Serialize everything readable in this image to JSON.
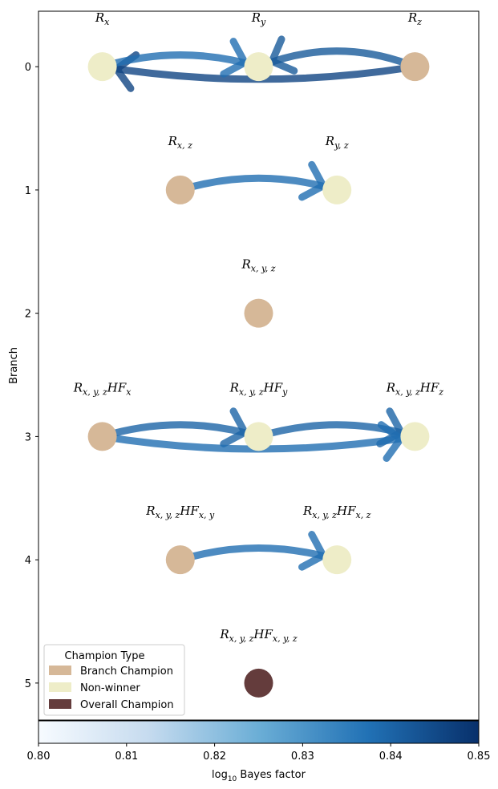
{
  "chart_data": {
    "type": "network",
    "ylabel": "Branch",
    "yticks": [
      0,
      1,
      2,
      3,
      4,
      5
    ],
    "ylim": [
      5.3,
      -0.45
    ],
    "xlim": [
      0,
      1
    ],
    "legend": {
      "title": "Champion Type",
      "placement": "lower-left",
      "entries": [
        {
          "label": "Branch Champion",
          "color": "#d6b898"
        },
        {
          "label": "Non-winner",
          "color": "#eeedc8"
        },
        {
          "label": "Overall Champion",
          "color": "#643c3c"
        }
      ]
    },
    "colorbar": {
      "label": "log",
      "label_sub": "10",
      "label_rest": " Bayes factor",
      "min": 0.8,
      "max": 0.85,
      "ticks": [
        "0.80",
        "0.81",
        "0.82",
        "0.83",
        "0.84",
        "0.85"
      ],
      "colormap": [
        "#f7fbff",
        "#c6dbef",
        "#6baed6",
        "#2171b5",
        "#08306b"
      ]
    },
    "nodes": [
      {
        "id": "Rx",
        "branch": 0,
        "x": 0.145,
        "type": "Non-winner",
        "label": {
          "base": "R",
          "sub": "x",
          "tail": "",
          "tsub": ""
        }
      },
      {
        "id": "Ry",
        "branch": 0,
        "x": 0.5,
        "type": "Non-winner",
        "label": {
          "base": "R",
          "sub": "y",
          "tail": "",
          "tsub": ""
        }
      },
      {
        "id": "Rz",
        "branch": 0,
        "x": 0.855,
        "type": "Branch Champion",
        "label": {
          "base": "R",
          "sub": "z",
          "tail": "",
          "tsub": ""
        }
      },
      {
        "id": "Rxz",
        "branch": 1,
        "x": 0.322,
        "type": "Branch Champion",
        "label": {
          "base": "R",
          "sub": "x, z",
          "tail": "",
          "tsub": ""
        }
      },
      {
        "id": "Ryz",
        "branch": 1,
        "x": 0.678,
        "type": "Non-winner",
        "label": {
          "base": "R",
          "sub": "y, z",
          "tail": "",
          "tsub": ""
        }
      },
      {
        "id": "Rxyz",
        "branch": 2,
        "x": 0.5,
        "type": "Branch Champion",
        "label": {
          "base": "R",
          "sub": "x, y, z",
          "tail": "",
          "tsub": ""
        }
      },
      {
        "id": "HFx",
        "branch": 3,
        "x": 0.145,
        "type": "Branch Champion",
        "label": {
          "base": "R",
          "sub": "x, y, z",
          "tail": "HF",
          "tsub": "x"
        }
      },
      {
        "id": "HFy",
        "branch": 3,
        "x": 0.5,
        "type": "Non-winner",
        "label": {
          "base": "R",
          "sub": "x, y, z",
          "tail": "HF",
          "tsub": "y"
        }
      },
      {
        "id": "HFz",
        "branch": 3,
        "x": 0.855,
        "type": "Non-winner",
        "label": {
          "base": "R",
          "sub": "x, y, z",
          "tail": "HF",
          "tsub": "z"
        }
      },
      {
        "id": "HFxy",
        "branch": 4,
        "x": 0.322,
        "type": "Branch Champion",
        "label": {
          "base": "R",
          "sub": "x, y, z",
          "tail": "HF",
          "tsub": "x, y"
        }
      },
      {
        "id": "HFxz",
        "branch": 4,
        "x": 0.678,
        "type": "Non-winner",
        "label": {
          "base": "R",
          "sub": "x, y, z",
          "tail": "HF",
          "tsub": "x, z"
        }
      },
      {
        "id": "HFxyz",
        "branch": 5,
        "x": 0.5,
        "type": "Overall Champion",
        "label": {
          "base": "R",
          "sub": "x, y, z",
          "tail": "HF",
          "tsub": "x, y, z"
        }
      }
    ],
    "edges": [
      {
        "from": "Rz",
        "to": "Rx",
        "bayes_factor": 0.846,
        "bend": -0.08
      },
      {
        "from": "Rx",
        "to": "Ry",
        "bayes_factor": 0.838,
        "bend": -0.15
      },
      {
        "from": "Rz",
        "to": "Ry",
        "bayes_factor": 0.842,
        "bend": 0.2
      },
      {
        "from": "Rxz",
        "to": "Ryz",
        "bayes_factor": 0.838,
        "bend": -0.15
      },
      {
        "from": "HFx",
        "to": "HFy",
        "bayes_factor": 0.84,
        "bend": -0.15
      },
      {
        "from": "HFy",
        "to": "HFz",
        "bayes_factor": 0.84,
        "bend": -0.15
      },
      {
        "from": "HFx",
        "to": "HFz",
        "bayes_factor": 0.838,
        "bend": 0.08
      },
      {
        "from": "HFxy",
        "to": "HFxz",
        "bayes_factor": 0.838,
        "bend": -0.15
      }
    ]
  }
}
